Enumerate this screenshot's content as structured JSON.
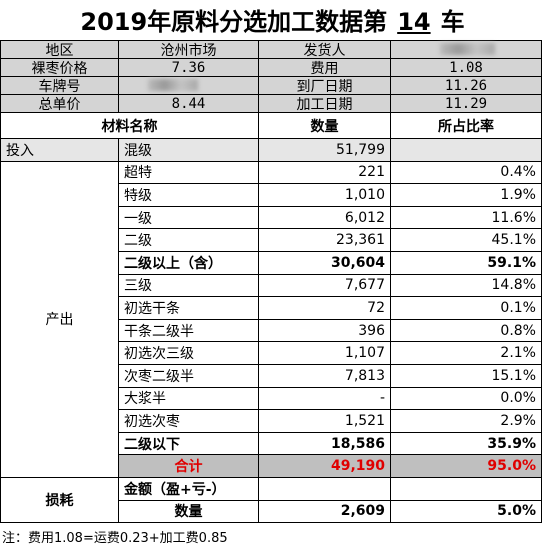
{
  "title": {
    "prefix": "2019年原料分选加工数据第",
    "number": "14",
    "suffix": "车"
  },
  "info": {
    "rows": [
      {
        "left_label": "地区",
        "left_value": "沧州市场",
        "right_label": "发货人"
      },
      {
        "left_label": "裸枣价格",
        "left_value": "7.36",
        "right_label": "费用",
        "right_value": "1.08"
      },
      {
        "left_label": "车牌号",
        "right_label": "到厂日期",
        "right_value": "11.26"
      },
      {
        "left_label": "总单价",
        "left_value": "8.44",
        "right_label": "加工日期",
        "right_value": "11.29"
      }
    ]
  },
  "table": {
    "header": [
      "材料名称",
      "数量",
      "所占比率"
    ],
    "input": {
      "group": "投入",
      "name": "混级",
      "quantity": "51,799"
    },
    "output": {
      "group": "产出",
      "rows": [
        {
          "name": "超特",
          "quantity": "221",
          "ratio": "0.4%"
        },
        {
          "name": "特级",
          "quantity": "1,010",
          "ratio": "1.9%"
        },
        {
          "name": "一级",
          "quantity": "6,012",
          "ratio": "11.6%"
        },
        {
          "name": "二级",
          "quantity": "23,361",
          "ratio": "45.1%"
        },
        {
          "name": "二级以上（含）",
          "quantity": "30,604",
          "ratio": "59.1%",
          "emphasis": true
        },
        {
          "name": "三级",
          "quantity": "7,677",
          "ratio": "14.8%"
        },
        {
          "name": "初选干条",
          "quantity": "72",
          "ratio": "0.1%"
        },
        {
          "name": "干条二级半",
          "quantity": "396",
          "ratio": "0.8%"
        },
        {
          "name": "初选次三级",
          "quantity": "1,107",
          "ratio": "2.1%"
        },
        {
          "name": "次枣二级半",
          "quantity": "7,813",
          "ratio": "15.1%"
        },
        {
          "name": "大浆半",
          "quantity": "-",
          "ratio": "0.0%"
        },
        {
          "name": "初选次枣",
          "quantity": "1,521",
          "ratio": "2.9%"
        },
        {
          "name": "二级以下",
          "quantity": "18,586",
          "ratio": "35.9%",
          "emphasis": true
        }
      ],
      "total": {
        "name": "合计",
        "quantity": "49,190",
        "ratio": "95.0%"
      }
    },
    "loss": {
      "group": "损耗",
      "amount_label": "金额（盈+亏-）",
      "quantity_label": "数量",
      "quantity": "2,609",
      "ratio": "5.0%"
    }
  },
  "note": "注：费用1.08=运费0.23+加工费0.85"
}
